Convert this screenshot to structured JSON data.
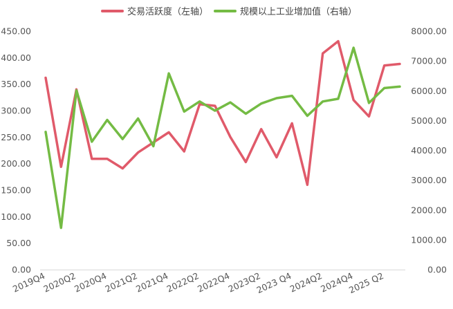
{
  "chart_data": {
    "type": "line",
    "categories": [
      "2019Q4",
      "2020Q1",
      "2020Q2",
      "2020Q3",
      "2020Q4",
      "2021Q1",
      "2021Q2",
      "2021Q3",
      "2021Q4",
      "2022Q1",
      "2022Q2",
      "2022Q3",
      "2022Q4",
      "2023Q1",
      "2023Q2",
      "2023Q3",
      "2023 Q4",
      "2024Q1",
      "2024Q2",
      "2024Q3",
      "2024Q4",
      "2025Q1",
      "2025 Q2",
      "2025Q3"
    ],
    "x_tick_labels": [
      "2019Q4",
      "2020Q2",
      "2020Q4",
      "2021Q2",
      "2021Q4",
      "2022Q2",
      "2022Q4",
      "2023Q2",
      "2023 Q4",
      "2024Q2",
      "2024Q4",
      "2025 Q2"
    ],
    "series": [
      {
        "name": "交易活跃度（左轴）",
        "axis": "left",
        "color": "#e05a6a",
        "values": [
          362,
          194,
          340,
          209,
          209,
          191,
          221,
          240,
          259,
          223,
          312,
          309,
          250,
          203,
          265,
          212,
          276,
          160,
          408,
          431,
          320,
          289,
          385,
          388
        ]
      },
      {
        "name": "规模以上工业增加值（右轴）",
        "axis": "right",
        "color": "#74bb44",
        "values": [
          4620,
          1400,
          6010,
          4290,
          5020,
          4380,
          5070,
          4140,
          6580,
          5300,
          5640,
          5330,
          5610,
          5230,
          5570,
          5750,
          5830,
          5160,
          5640,
          5730,
          7440,
          5590,
          6090,
          6140
        ]
      }
    ],
    "y_left": {
      "min": 0,
      "max": 450,
      "step": 50,
      "tick_labels": [
        "0.00",
        "50.00",
        "100.00",
        "150.00",
        "200.00",
        "250.00",
        "300.00",
        "350.00",
        "400.00",
        "450.00"
      ]
    },
    "y_right": {
      "min": 0,
      "max": 8000,
      "step": 1000,
      "tick_labels": [
        "0.00",
        "1000.00",
        "2000.00",
        "3000.00",
        "4000.00",
        "5000.00",
        "6000.00",
        "7000.00",
        "8000.00"
      ]
    },
    "legend_position": "top-center",
    "grid": false
  }
}
